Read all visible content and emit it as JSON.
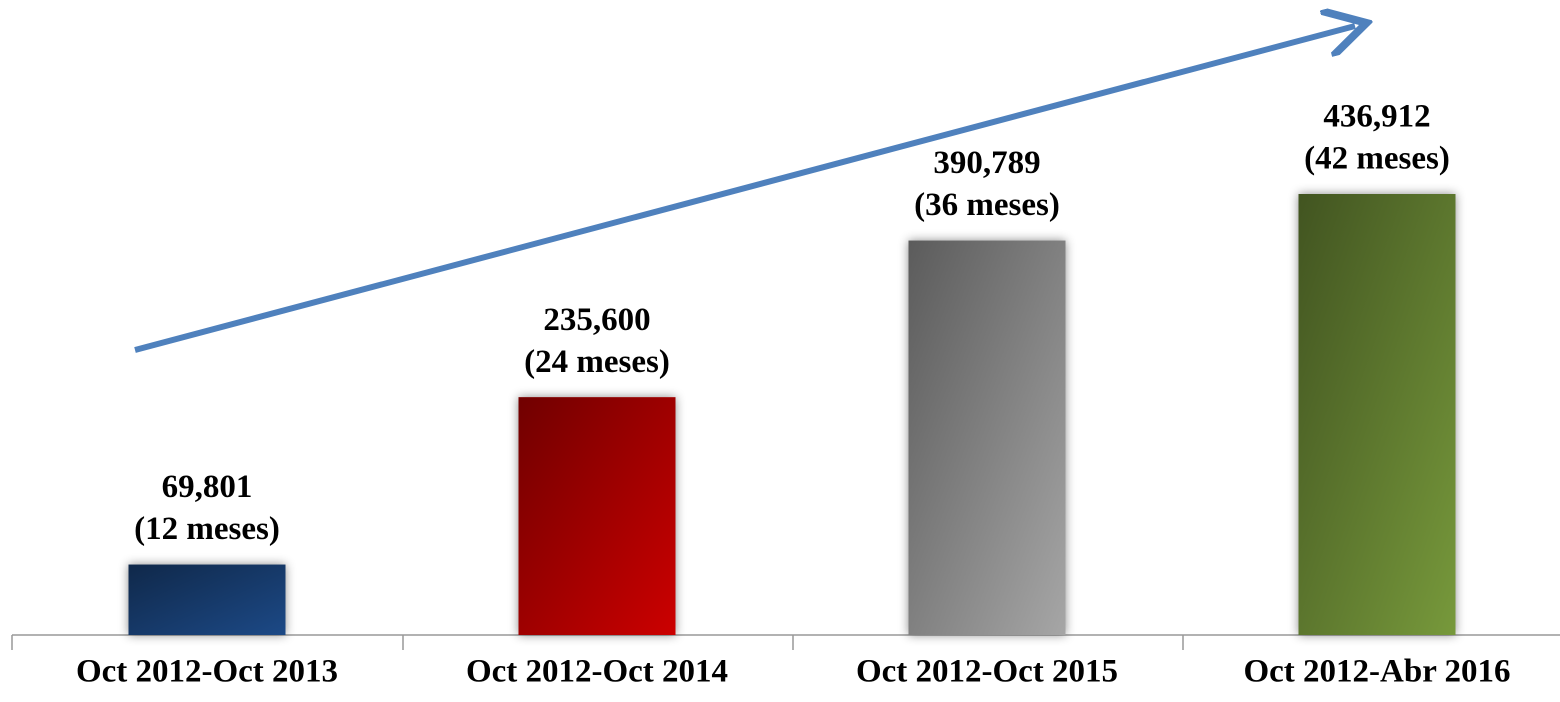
{
  "chart_data": {
    "type": "bar",
    "categories": [
      "Oct 2012-Oct 2013",
      "Oct 2012-Oct 2014",
      "Oct 2012-Oct 2015",
      "Oct 2012-Abr 2016"
    ],
    "values": [
      69801,
      235600,
      390789,
      436912
    ],
    "value_labels": [
      "69,801",
      "235,600",
      "390,789",
      "436,912"
    ],
    "annotations": [
      "(12 meses)",
      "(24 meses)",
      "(36 meses)",
      "(42 meses)"
    ],
    "colors": [
      "#1c4a86",
      "#cc0000",
      "#a6a6a6",
      "#77993a"
    ]
  }
}
